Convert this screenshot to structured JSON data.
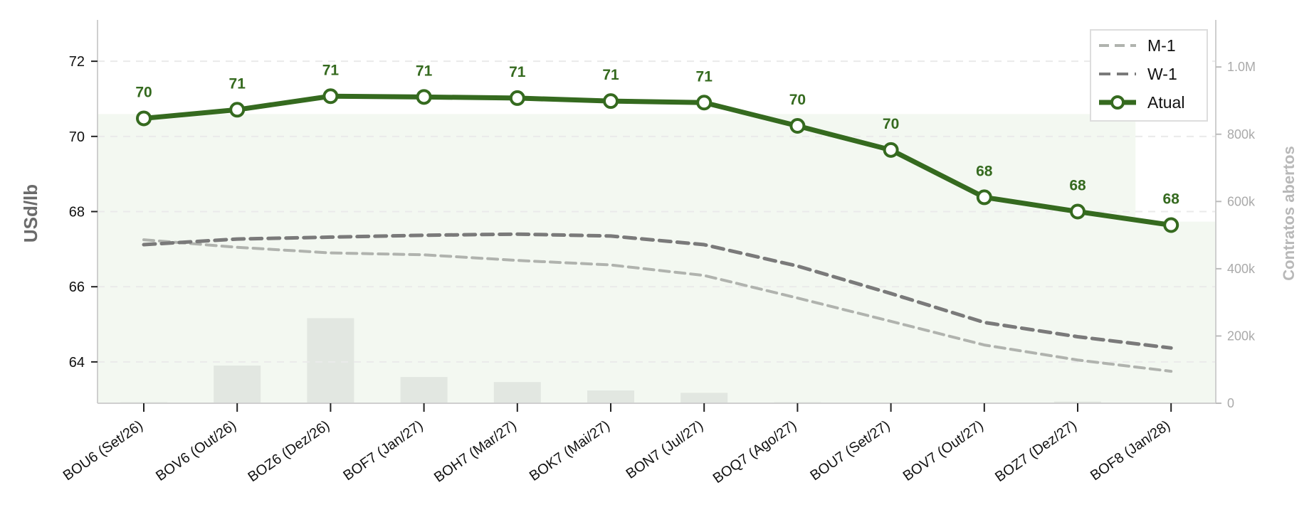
{
  "colors": {
    "atual": "#356a1f",
    "w1": "#7a7a7a",
    "m1": "#b0b3ae",
    "volume_bar": "#e2e7e1",
    "open_interest_fill": "#f3f8f1",
    "axis": "#cfcfcf",
    "grid": "#eaeaea"
  },
  "chart_data": {
    "type": "line",
    "categories": [
      "BOU6 (Set/26)",
      "BOV6 (Out/26)",
      "BOZ6 (Dez/26)",
      "BOF7 (Jan/27)",
      "BOH7 (Mar/27)",
      "BOK7 (Mai/27)",
      "BON7 (Jul/27)",
      "BOQ7 (Ago/27)",
      "BOU7 (Set/27)",
      "BOV7 (Out/27)",
      "BOZ7 (Dez/27)",
      "BOF8 (Jan/28)"
    ],
    "ylabel": "USd/lb",
    "y2label": "Contratos abertos",
    "ylim": [
      62.9,
      73.1
    ],
    "yticks": [
      64,
      66,
      68,
      70,
      72
    ],
    "y2lim": [
      0,
      1140000
    ],
    "y2ticks": [
      0,
      200000,
      400000,
      600000,
      800000,
      1000000
    ],
    "y2ticklabels": [
      "0",
      "200k",
      "400k",
      "600k",
      "800k",
      "1.0M"
    ],
    "grid": true,
    "legend_position": "top-right",
    "series": [
      {
        "name": "M-1",
        "style": "dashed-light",
        "values": [
          67.25,
          67.05,
          66.9,
          66.85,
          66.7,
          66.58,
          66.3,
          65.7,
          65.08,
          64.45,
          64.05,
          63.75
        ]
      },
      {
        "name": "W-1",
        "style": "dashed-dark",
        "values": [
          67.12,
          67.27,
          67.32,
          67.37,
          67.4,
          67.35,
          67.12,
          66.55,
          65.82,
          65.05,
          64.67,
          64.37
        ]
      },
      {
        "name": "Atual",
        "style": "solid-markers",
        "values": [
          70.48,
          70.71,
          71.07,
          71.05,
          71.02,
          70.94,
          70.9,
          70.28,
          69.64,
          68.38,
          68.0,
          67.64
        ]
      }
    ],
    "data_labels": [
      "70",
      "71",
      "71",
      "71",
      "71",
      "71",
      "71",
      "70",
      "70",
      "68",
      "68",
      "68"
    ],
    "volume_bars": [
      3000,
      112000,
      253000,
      78000,
      63000,
      38000,
      31000,
      3000,
      1000,
      1000,
      5000,
      1000
    ],
    "open_interest_area": {
      "first_step_value": 860000,
      "last_step_value": 540000
    }
  }
}
